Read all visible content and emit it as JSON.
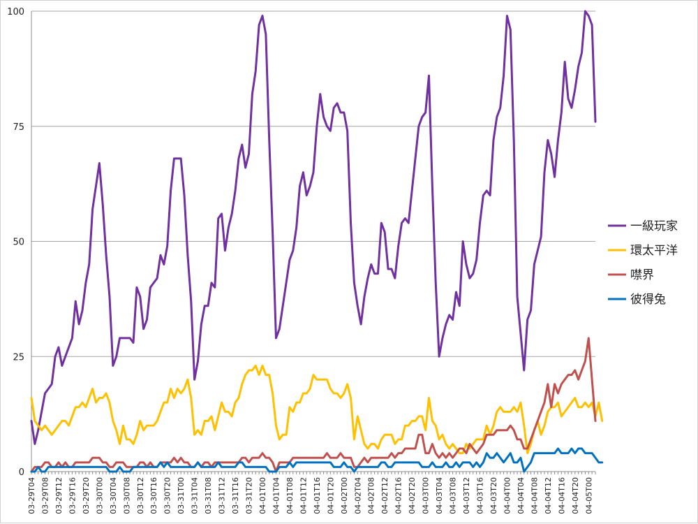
{
  "chart_data": {
    "type": "line",
    "title": "",
    "xlabel": "",
    "ylabel": "",
    "ylim": [
      0,
      100
    ],
    "yticks": [
      0,
      25,
      50,
      75,
      100
    ],
    "grid": true,
    "legend_position": "right",
    "x_tick_labels": [
      "03-29T04",
      "03-29T08",
      "03-29T12",
      "03-29T16",
      "03-29T20",
      "03-30T00",
      "03-30T04",
      "03-30T08",
      "03-30T12",
      "03-30T16",
      "03-30T20",
      "03-31T00",
      "03-31T04",
      "03-31T08",
      "03-31T12",
      "03-31T16",
      "03-31T20",
      "04-01T00",
      "04-01T04",
      "04-01T08",
      "04-01T12",
      "04-01T16",
      "04-01T20",
      "04-02T00",
      "04-02T04",
      "04-02T08",
      "04-02T12",
      "04-02T16",
      "04-02T20",
      "04-03T00",
      "04-03T04",
      "04-03T08",
      "04-03T12",
      "04-03T16",
      "04-03T20",
      "04-04T00",
      "04-04T04",
      "04-04T08",
      "04-04T12",
      "04-04T16",
      "04-04T20",
      "04-05T00"
    ],
    "points_per_tick": 4,
    "series": [
      {
        "name": "一級玩家",
        "color": "#7030a0",
        "values": [
          11,
          6,
          9,
          13,
          17,
          18,
          19,
          25,
          27,
          23,
          25,
          27,
          29,
          37,
          32,
          35,
          41,
          45,
          57,
          62,
          67,
          58,
          47,
          38,
          23,
          25,
          29,
          29,
          29,
          29,
          28,
          40,
          38,
          31,
          33,
          40,
          41,
          42,
          47,
          45,
          49,
          61,
          68,
          68,
          68,
          60,
          47,
          37,
          20,
          24,
          32,
          36,
          36,
          41,
          40,
          55,
          56,
          48,
          53,
          56,
          61,
          68,
          71,
          66,
          69,
          82,
          87,
          97,
          99,
          95,
          72,
          52,
          29,
          31,
          36,
          41,
          46,
          48,
          53,
          62,
          65,
          60,
          62,
          65,
          75,
          82,
          77,
          75,
          74,
          79,
          80,
          78,
          78,
          74,
          54,
          41,
          36,
          32,
          38,
          42,
          45,
          43,
          43,
          54,
          52,
          44,
          44,
          42,
          49,
          54,
          55,
          54,
          61,
          68,
          75,
          77,
          78,
          86,
          62,
          41,
          25,
          29,
          32,
          34,
          33,
          39,
          36,
          50,
          45,
          42,
          43,
          46,
          54,
          60,
          61,
          60,
          72,
          77,
          79,
          86,
          99,
          96,
          72,
          38,
          30,
          22,
          33,
          35,
          45,
          48,
          51,
          65,
          72,
          69,
          64,
          72,
          78,
          89,
          81,
          79,
          83,
          88,
          91,
          100,
          99,
          97,
          76
        ]
      },
      {
        "name": "環太平洋",
        "color": "#ffc000",
        "values": [
          16,
          11,
          10,
          9,
          10,
          9,
          8,
          9,
          10,
          11,
          11,
          10,
          12,
          14,
          14,
          15,
          14,
          16,
          18,
          15,
          16,
          16,
          17,
          15,
          11,
          9,
          6,
          10,
          7,
          7,
          6,
          8,
          11,
          9,
          10,
          10,
          10,
          11,
          13,
          15,
          15,
          18,
          16,
          18,
          17,
          18,
          20,
          16,
          8,
          9,
          8,
          11,
          11,
          12,
          9,
          12,
          15,
          13,
          13,
          12,
          15,
          16,
          19,
          21,
          22,
          22,
          23,
          21,
          23,
          21,
          21,
          17,
          10,
          7,
          8,
          8,
          14,
          13,
          15,
          15,
          17,
          17,
          18,
          21,
          20,
          20,
          20,
          20,
          18,
          17,
          17,
          16,
          17,
          19,
          16,
          7,
          12,
          9,
          6,
          5,
          6,
          6,
          5,
          7,
          8,
          8,
          8,
          6,
          7,
          7,
          10,
          10,
          11,
          11,
          12,
          12,
          9,
          16,
          11,
          10,
          7,
          8,
          6,
          5,
          6,
          5,
          4,
          4,
          6,
          5,
          6,
          7,
          7,
          7,
          10,
          8,
          10,
          13,
          14,
          13,
          13,
          13,
          14,
          13,
          15,
          10,
          4,
          6,
          9,
          11,
          8,
          10,
          13,
          14,
          14,
          15,
          12,
          13,
          14,
          15,
          16,
          14,
          14,
          15,
          14,
          15,
          12,
          15,
          11
        ]
      },
      {
        "name": "噤界",
        "color": "#c0504d",
        "values": [
          0,
          1,
          1,
          1,
          2,
          2,
          1,
          1,
          2,
          1,
          2,
          1,
          1,
          2,
          2,
          2,
          2,
          2,
          3,
          3,
          3,
          2,
          2,
          1,
          1,
          2,
          2,
          2,
          1,
          1,
          1,
          1,
          2,
          2,
          1,
          2,
          1,
          1,
          2,
          2,
          2,
          2,
          3,
          2,
          3,
          2,
          2,
          1,
          1,
          2,
          1,
          2,
          2,
          1,
          2,
          2,
          2,
          2,
          2,
          2,
          2,
          2,
          3,
          3,
          2,
          3,
          3,
          3,
          4,
          3,
          3,
          2,
          0,
          2,
          2,
          2,
          2,
          3,
          3,
          3,
          3,
          3,
          3,
          3,
          3,
          3,
          3,
          4,
          3,
          3,
          3,
          4,
          3,
          3,
          3,
          1,
          1,
          2,
          3,
          2,
          3,
          3,
          3,
          3,
          3,
          3,
          4,
          3,
          4,
          4,
          5,
          5,
          5,
          5,
          8,
          8,
          4,
          4,
          6,
          4,
          3,
          4,
          3,
          4,
          3,
          4,
          5,
          5,
          4,
          6,
          5,
          4,
          5,
          6,
          8,
          8,
          8,
          9,
          9,
          9,
          9,
          10,
          9,
          7,
          7,
          5,
          5,
          7,
          9,
          11,
          13,
          15,
          19,
          14,
          19,
          17,
          19,
          20,
          21,
          21,
          22,
          20,
          22,
          24,
          29,
          20,
          11
        ]
      },
      {
        "name": "彼得兔",
        "color": "#0070c0",
        "values": [
          0,
          0,
          1,
          0,
          0,
          1,
          1,
          1,
          1,
          1,
          1,
          1,
          1,
          1,
          1,
          1,
          1,
          1,
          1,
          1,
          1,
          1,
          1,
          0,
          0,
          0,
          1,
          0,
          0,
          0,
          1,
          1,
          1,
          1,
          1,
          1,
          1,
          1,
          2,
          1,
          2,
          1,
          1,
          1,
          1,
          1,
          1,
          1,
          1,
          2,
          1,
          1,
          1,
          1,
          1,
          2,
          1,
          1,
          1,
          1,
          1,
          2,
          2,
          1,
          1,
          1,
          1,
          1,
          1,
          1,
          0,
          0,
          0,
          1,
          1,
          1,
          2,
          1,
          2,
          2,
          2,
          2,
          2,
          2,
          2,
          2,
          2,
          2,
          2,
          1,
          1,
          1,
          2,
          1,
          1,
          0,
          1,
          1,
          1,
          1,
          1,
          1,
          1,
          2,
          2,
          1,
          1,
          2,
          2,
          2,
          2,
          2,
          2,
          2,
          2,
          1,
          1,
          1,
          2,
          1,
          1,
          1,
          2,
          1,
          1,
          2,
          1,
          2,
          2,
          2,
          1,
          2,
          1,
          2,
          4,
          3,
          3,
          4,
          3,
          2,
          3,
          4,
          2,
          2,
          3,
          0,
          1,
          2,
          4,
          4,
          4,
          4,
          4,
          4,
          4,
          5,
          4,
          4,
          4,
          5,
          4,
          5,
          5,
          4,
          4,
          4,
          3,
          2,
          2
        ]
      }
    ]
  }
}
